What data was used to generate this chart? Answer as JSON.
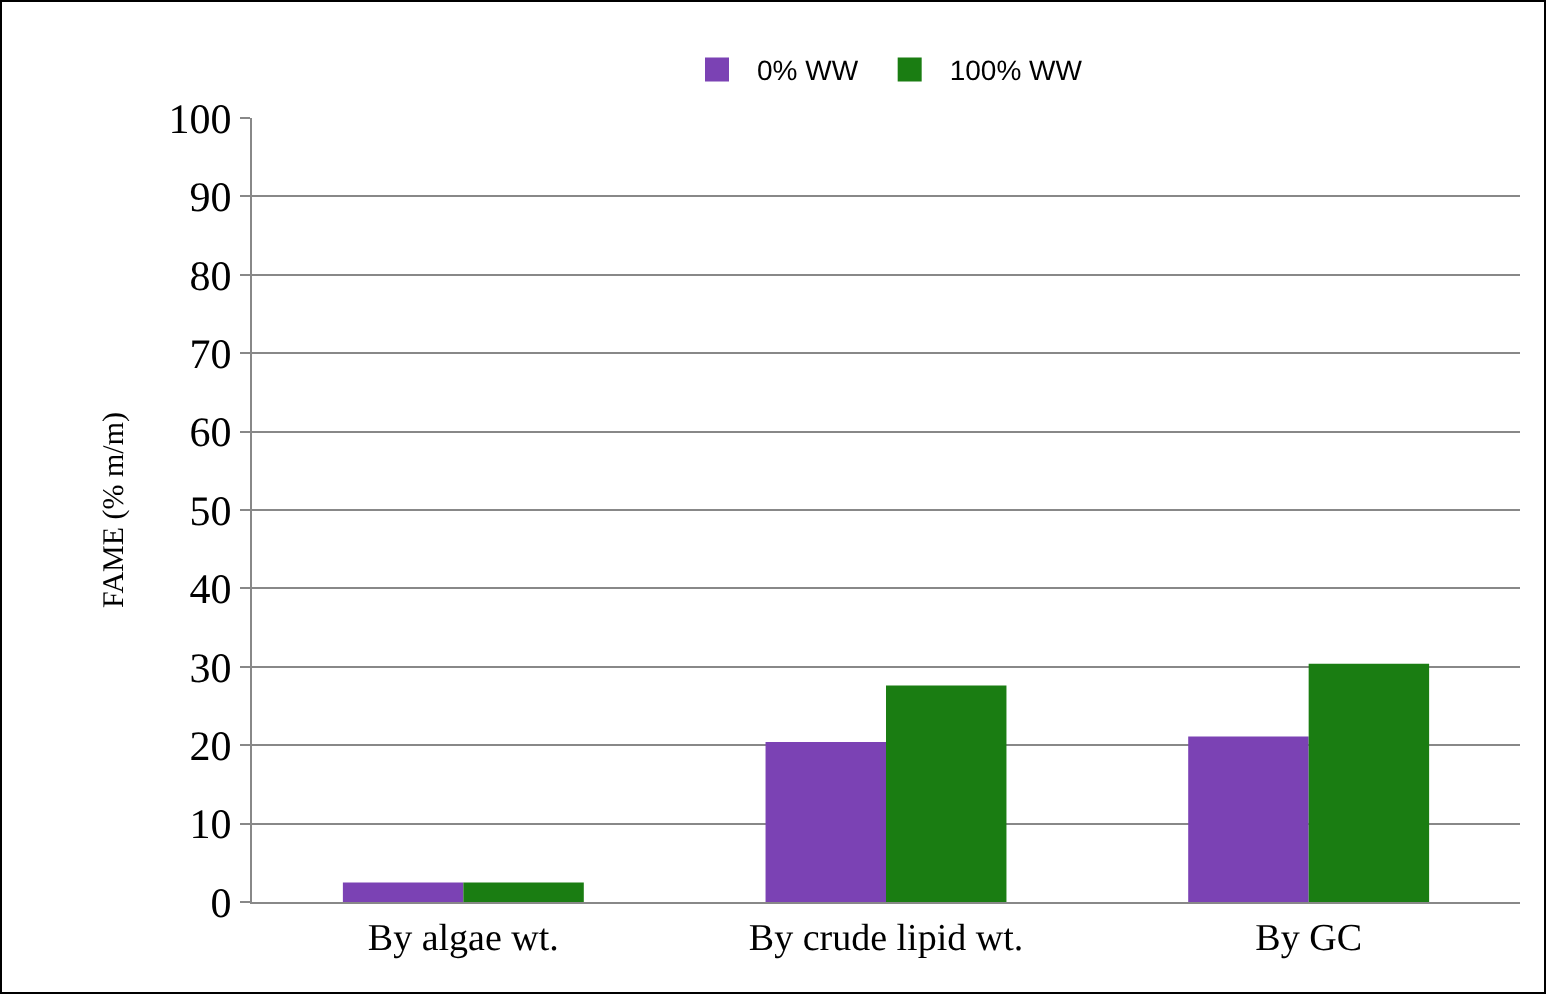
{
  "chart_data": {
    "type": "bar",
    "ylabel": "FAME (% m/m)",
    "categories": [
      "By algae wt.",
      "By crude lipid wt.",
      "By GC"
    ],
    "series": [
      {
        "name": "0% WW",
        "color": "#7b42b4",
        "values": [
          2.5,
          20.4,
          21.1
        ]
      },
      {
        "name": "100% WW",
        "color": "#1a7d12",
        "values": [
          2.5,
          27.6,
          30.4
        ]
      }
    ],
    "ylim": [
      0,
      100
    ],
    "yticks": [
      0,
      10,
      20,
      30,
      40,
      50,
      60,
      70,
      80,
      90,
      100
    ],
    "grid": "y",
    "legend": "top"
  }
}
